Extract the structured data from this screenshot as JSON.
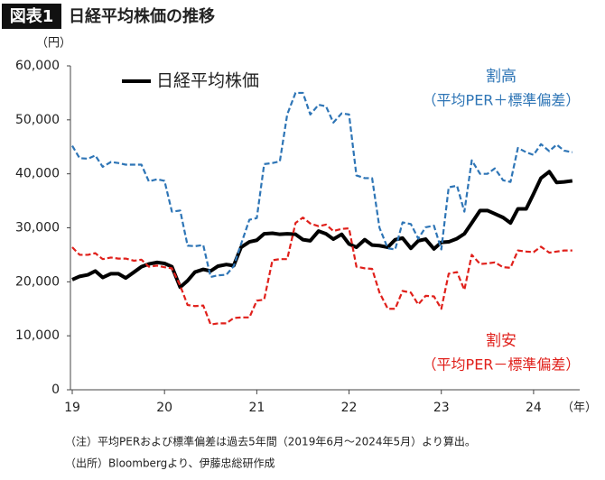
{
  "chart_data": {
    "type": "line",
    "badge": "図表1",
    "title": "日経平均株価の推移",
    "y_unit": "（円）",
    "x_unit": "（年）",
    "notes": [
      "（注）平均PERおよび標準偏差は過去5年間（2019年6月～2024年5月）より算出。",
      "（出所）Bloombergより、伊藤忠総研作成"
    ],
    "legend": "top-left",
    "x": [
      19,
      19.08,
      19.17,
      19.25,
      19.33,
      19.42,
      19.5,
      19.58,
      19.67,
      19.75,
      19.83,
      19.92,
      20,
      20.08,
      20.17,
      20.25,
      20.33,
      20.42,
      20.5,
      20.58,
      20.67,
      20.75,
      20.83,
      20.92,
      21,
      21.08,
      21.17,
      21.25,
      21.33,
      21.42,
      21.5,
      21.58,
      21.67,
      21.75,
      21.83,
      21.92,
      22,
      22.08,
      22.17,
      22.25,
      22.33,
      22.42,
      22.5,
      22.58,
      22.67,
      22.75,
      22.83,
      22.92,
      23,
      23.08,
      23.17,
      23.25,
      23.33,
      23.42,
      23.5,
      23.58,
      23.67,
      23.75,
      23.83,
      23.92,
      24,
      24.08,
      24.17,
      24.25,
      24.33,
      24.42
    ],
    "series": [
      {
        "name": "日経平均株価",
        "color": "#000000",
        "style": "solid",
        "in_legend": true,
        "values": [
          20400,
          21000,
          21300,
          22000,
          20800,
          21500,
          21500,
          20700,
          21800,
          22800,
          23300,
          23600,
          23400,
          22800,
          19000,
          20200,
          21800,
          22300,
          22000,
          22900,
          23200,
          23000,
          26400,
          27400,
          27700,
          28900,
          29000,
          28800,
          28900,
          28800,
          27800,
          27600,
          29400,
          28900,
          27900,
          28800,
          27000,
          26400,
          27800,
          26800,
          26700,
          26400,
          27800,
          28100,
          26200,
          27600,
          27900,
          26100,
          27300,
          27400,
          28000,
          28900,
          30900,
          33200,
          33200,
          32600,
          31900,
          30900,
          33500,
          33500,
          36300,
          39200,
          40400,
          38400,
          38500,
          38700
        ]
      },
      {
        "name": "割高",
        "annotation": "（平均PER＋標準偏差）",
        "color": "#2e75b6",
        "style": "dashed",
        "in_legend": false,
        "values": [
          45200,
          42900,
          42800,
          43400,
          41300,
          42200,
          42000,
          41700,
          41700,
          41700,
          38600,
          39000,
          38700,
          33000,
          33200,
          26700,
          26600,
          26800,
          20900,
          21200,
          21300,
          22900,
          27000,
          31500,
          31800,
          41800,
          42000,
          42300,
          51000,
          55000,
          55000,
          51000,
          52800,
          52500,
          49500,
          51200,
          51000,
          39700,
          39200,
          39200,
          30000,
          26200,
          26000,
          31000,
          30700,
          28000,
          30100,
          30400,
          26000,
          37500,
          37800,
          33000,
          42500,
          40000,
          40000,
          41000,
          38800,
          38500,
          44800,
          44000,
          43500,
          45500,
          44200,
          45400,
          44300,
          44000
        ]
      },
      {
        "name": "割安",
        "annotation": "（平均PER－標準偏差）",
        "color": "#e0201b",
        "style": "dashed",
        "in_legend": false,
        "values": [
          26400,
          25000,
          25000,
          25300,
          24200,
          24500,
          24300,
          24300,
          23900,
          24100,
          22800,
          23000,
          22700,
          22500,
          19300,
          15700,
          15500,
          15600,
          12100,
          12300,
          12300,
          13300,
          13400,
          13400,
          16500,
          16700,
          24000,
          24200,
          24200,
          30900,
          31900,
          30800,
          30300,
          30600,
          29400,
          29800,
          29900,
          22800,
          22500,
          22400,
          18000,
          15000,
          15000,
          18300,
          18000,
          15800,
          17400,
          17300,
          15000,
          21500,
          21800,
          18500,
          25000,
          23300,
          23400,
          23600,
          22700,
          22600,
          25800,
          25600,
          25500,
          26500,
          25400,
          25600,
          25800,
          25800
        ]
      }
    ],
    "xlim": [
      19,
      24.5
    ],
    "xticks": [
      19,
      20,
      21,
      22,
      23,
      24
    ],
    "ylim": [
      0,
      60000
    ],
    "yticks": [
      0,
      {
        "value": 10000,
        "label": "10,000"
      },
      {
        "value": 20000,
        "label": "20,000"
      },
      {
        "value": 30000,
        "label": "30,000"
      },
      {
        "value": 40000,
        "label": "40,000"
      },
      {
        "value": 50000,
        "label": "50,000"
      },
      {
        "value": 60000,
        "label": "60,000"
      }
    ],
    "grid": false
  }
}
